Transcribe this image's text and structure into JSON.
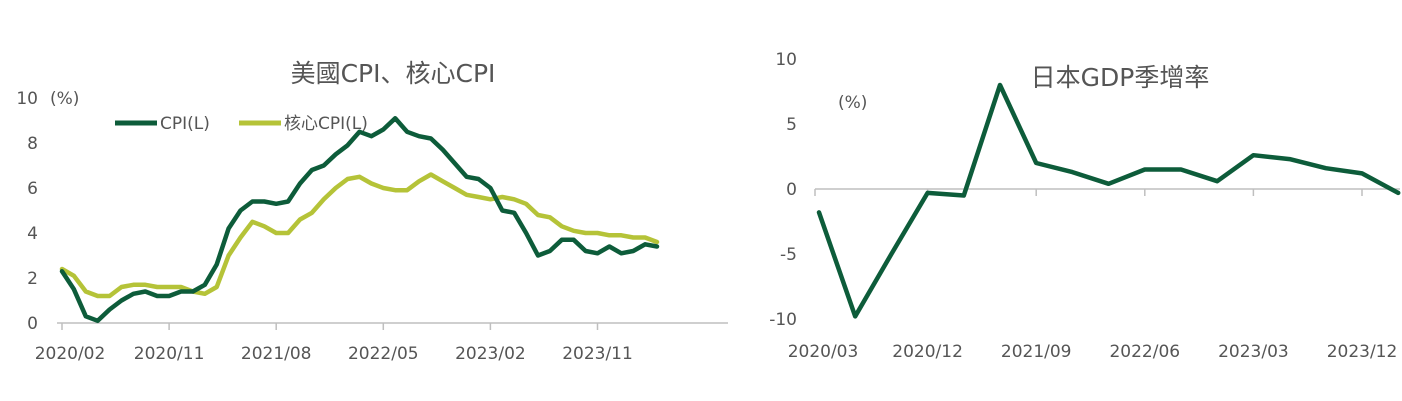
{
  "colors": {
    "cpi": "#0d5c3a",
    "core": "#b5c338",
    "axis": "#bfbfbf",
    "text": "#555555"
  },
  "chart_data": [
    {
      "type": "line",
      "title": "美國CPI、核心CPI",
      "unit": "(%)",
      "ylim": [
        0,
        10
      ],
      "yticks": [
        "0",
        "2",
        "4",
        "6",
        "8",
        "10"
      ],
      "xticks": [
        "2020/02",
        "2020/11",
        "2021/08",
        "2022/05",
        "2023/02",
        "2023/11"
      ],
      "x_start": "2020/02",
      "legend": "top-left",
      "grid": false,
      "series": [
        {
          "name": "CPI(L)",
          "color": "#0d5c3a",
          "values": [
            2.3,
            1.5,
            0.3,
            0.1,
            0.6,
            1.0,
            1.3,
            1.4,
            1.2,
            1.2,
            1.4,
            1.4,
            1.7,
            2.6,
            4.2,
            5.0,
            5.4,
            5.4,
            5.3,
            5.4,
            6.2,
            6.8,
            7.0,
            7.5,
            7.9,
            8.5,
            8.3,
            8.6,
            9.1,
            8.5,
            8.3,
            8.2,
            7.7,
            7.1,
            6.5,
            6.4,
            6.0,
            5.0,
            4.9,
            4.0,
            3.0,
            3.2,
            3.7,
            3.7,
            3.2,
            3.1,
            3.4,
            3.1,
            3.2,
            3.5,
            3.4
          ]
        },
        {
          "name": "核心CPI(L)",
          "color": "#b5c338",
          "values": [
            2.4,
            2.1,
            1.4,
            1.2,
            1.2,
            1.6,
            1.7,
            1.7,
            1.6,
            1.6,
            1.6,
            1.4,
            1.3,
            1.6,
            3.0,
            3.8,
            4.5,
            4.3,
            4.0,
            4.0,
            4.6,
            4.9,
            5.5,
            6.0,
            6.4,
            6.5,
            6.2,
            6.0,
            5.9,
            5.9,
            6.3,
            6.6,
            6.3,
            6.0,
            5.7,
            5.6,
            5.5,
            5.6,
            5.5,
            5.3,
            4.8,
            4.7,
            4.3,
            4.1,
            4.0,
            4.0,
            3.9,
            3.9,
            3.8,
            3.8,
            3.6
          ]
        }
      ]
    },
    {
      "type": "line",
      "title": "日本GDP季增率",
      "unit": "(%)",
      "ylim": [
        -10,
        10
      ],
      "yticks": [
        "-10",
        "-5",
        "0",
        "5",
        "10"
      ],
      "xticks": [
        "2020/03",
        "2020/12",
        "2021/09",
        "2022/06",
        "2023/03",
        "2023/12"
      ],
      "x_start": "2020/03",
      "grid": false,
      "series": [
        {
          "name": "",
          "color": "#0d5c3a",
          "values": [
            -1.8,
            -9.8,
            -5.0,
            -0.3,
            -0.5,
            8.0,
            2.0,
            1.3,
            0.4,
            1.5,
            1.5,
            0.6,
            2.6,
            2.3,
            1.6,
            1.2,
            -0.3
          ]
        }
      ]
    }
  ]
}
